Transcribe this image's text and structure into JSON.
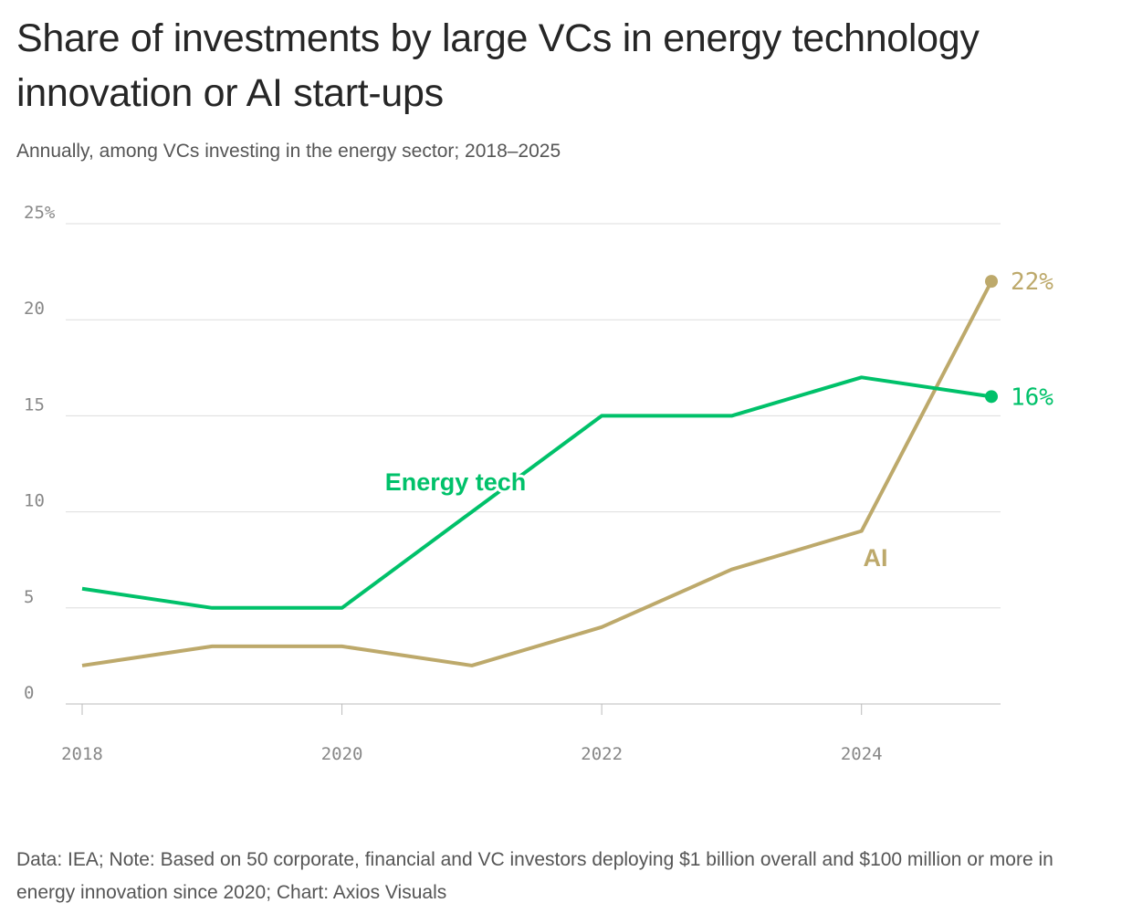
{
  "title": "Share of investments by large VCs in energy technology innovation or AI start-ups",
  "subtitle": "Annually, among VCs investing in the energy sector; 2018–2025",
  "note": "Data: IEA; Note: Based on 50 corporate, financial and VC investors deploying $1 billion overall and $100 million or more in energy innovation since 2020; Chart: Axios Visuals",
  "chart_data": {
    "type": "line",
    "x": [
      2018,
      2019,
      2020,
      2021,
      2022,
      2023,
      2024,
      2025
    ],
    "series": [
      {
        "name": "Energy tech",
        "color": "#00c16a",
        "values": [
          6,
          5,
          5,
          10,
          15,
          15,
          17,
          16
        ],
        "end_label": "16%"
      },
      {
        "name": "AI",
        "color": "#bda96b",
        "values": [
          2,
          3,
          3,
          2,
          4,
          7,
          9,
          22
        ],
        "end_label": "22%"
      }
    ],
    "ylim": [
      0,
      25
    ],
    "y_ticks": [
      {
        "value": 0,
        "label": "0"
      },
      {
        "value": 5,
        "label": "5"
      },
      {
        "value": 10,
        "label": "10"
      },
      {
        "value": 15,
        "label": "15"
      },
      {
        "value": 20,
        "label": "20"
      },
      {
        "value": 25,
        "label": "25%"
      }
    ],
    "x_ticks": [
      {
        "value": 2018,
        "label": "2018"
      },
      {
        "value": 2020,
        "label": "2020"
      },
      {
        "value": 2022,
        "label": "2022"
      },
      {
        "value": 2024,
        "label": "2024"
      }
    ],
    "grid": true,
    "xlabel": "",
    "ylabel": ""
  }
}
